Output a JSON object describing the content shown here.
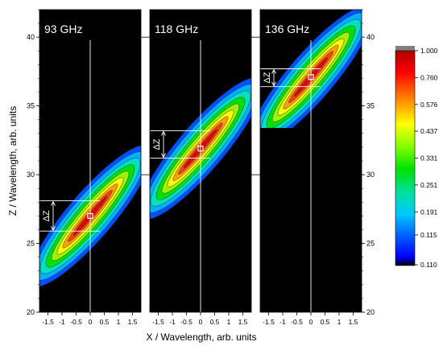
{
  "chart_data": {
    "type": "heatmap",
    "xlabel": "X / Wavelength, arb. units",
    "ylabel": "Z / Wavelength, arb. units",
    "xlim": [
      -1.8,
      1.8
    ],
    "ylim": [
      20,
      42
    ],
    "x_ticks": [
      -1.5,
      -1.0,
      -0.5,
      0,
      0.5,
      1.0,
      1.5
    ],
    "x_tick_labels": [
      "-1.5",
      "-1",
      "-0.5",
      "0",
      "0.5",
      "1",
      "1.5"
    ],
    "y_ticks": [
      20,
      25,
      30,
      35,
      40
    ],
    "y_tick_labels": [
      "20",
      "25",
      "30",
      "35",
      "40"
    ],
    "delta_label": "ΔZ",
    "panels": [
      {
        "label": "93 GHz",
        "ridge": {
          "slope": 2.4,
          "intercept": 27.0
        },
        "peak": {
          "x": 0,
          "z": 27.0
        },
        "delta_z": [
          25.9,
          28.1
        ],
        "z_range": [
          21,
          42
        ]
      },
      {
        "label": "118 GHz",
        "ridge": {
          "slope": 2.4,
          "intercept": 32.0
        },
        "peak": {
          "x": 0,
          "z": 31.9
        },
        "delta_z": [
          31.2,
          33.2
        ],
        "z_range": [
          26.6,
          42
        ]
      },
      {
        "label": "136 GHz",
        "ridge": {
          "slope": 2.4,
          "intercept": 37.1
        },
        "peak": {
          "x": 0,
          "z": 37.1
        },
        "delta_z": [
          36.4,
          37.7
        ],
        "z_range": [
          33.4,
          42
        ]
      }
    ],
    "colorbar": {
      "ticks": [
        "1.000",
        "0.760",
        "0.576",
        "0.437",
        "0.331",
        "0.251",
        "0.191",
        "0.115",
        "0.110"
      ],
      "colors": [
        "#000000",
        "#0000ff",
        "#0060ff",
        "#00c8ff",
        "#00e0a0",
        "#00e000",
        "#80ff00",
        "#ffff00",
        "#ff8000",
        "#ff0000",
        "#b00000"
      ]
    }
  }
}
